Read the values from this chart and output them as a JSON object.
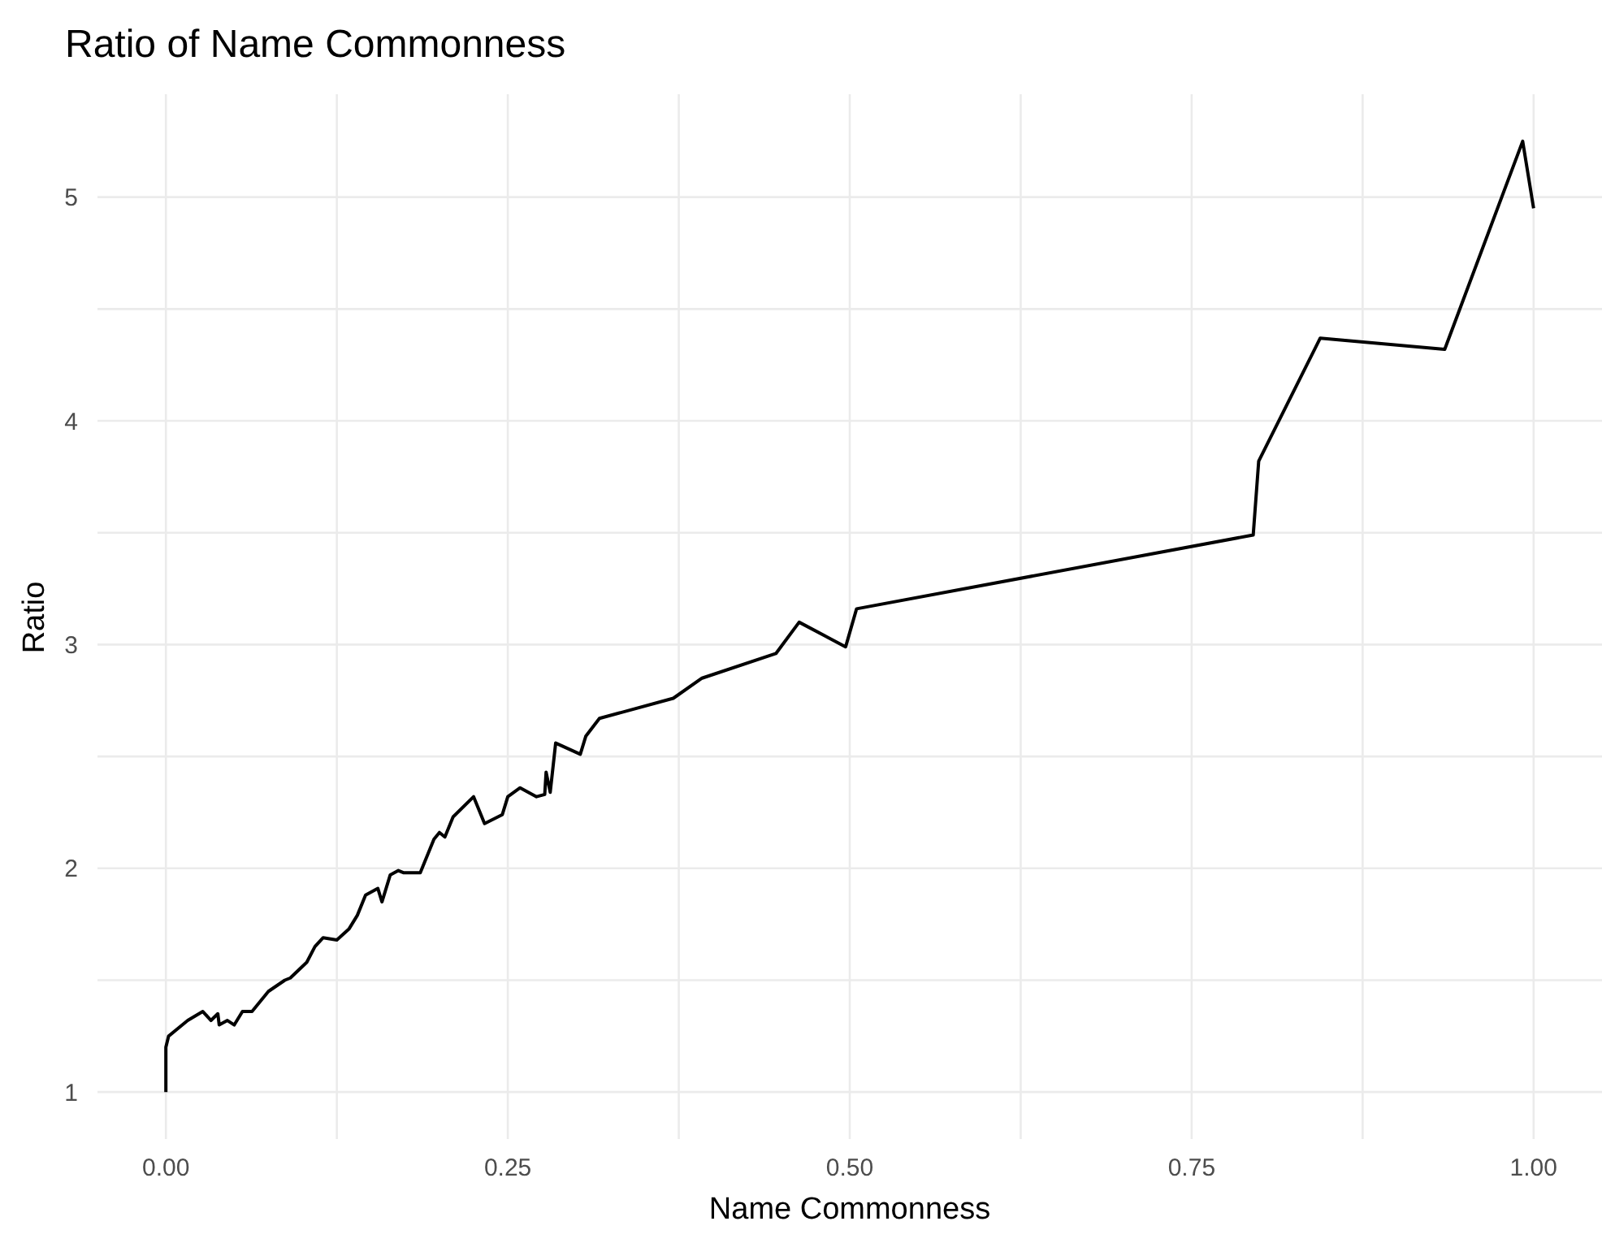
{
  "chart_data": {
    "type": "line",
    "title": "Ratio of Name Commonness",
    "xlabel": "Name Commonness",
    "ylabel": "Ratio",
    "x": [
      0,
      0,
      0.002,
      0.016,
      0.027,
      0.033,
      0.038,
      0.039,
      0.045,
      0.05,
      0.056,
      0.063,
      0.075,
      0.087,
      0.091,
      0.103,
      0.109,
      0.115,
      0.125,
      0.134,
      0.14,
      0.146,
      0.155,
      0.158,
      0.164,
      0.17,
      0.174,
      0.186,
      0.196,
      0.2,
      0.204,
      0.21,
      0.225,
      0.233,
      0.246,
      0.25,
      0.259,
      0.271,
      0.277,
      0.278,
      0.281,
      0.285,
      0.303,
      0.307,
      0.317,
      0.371,
      0.392,
      0.446,
      0.463,
      0.497,
      0.505,
      0.795,
      0.799,
      0.844,
      0.935,
      0.992,
      1
    ],
    "series": [
      {
        "color": "#000000",
        "values": [
          1,
          1.2,
          1.25,
          1.32,
          1.36,
          1.32,
          1.35,
          1.3,
          1.32,
          1.3,
          1.36,
          1.36,
          1.45,
          1.5,
          1.51,
          1.58,
          1.65,
          1.69,
          1.68,
          1.73,
          1.79,
          1.88,
          1.91,
          1.85,
          1.97,
          1.99,
          1.98,
          1.98,
          2.13,
          2.16,
          2.14,
          2.23,
          2.32,
          2.2,
          2.24,
          2.32,
          2.36,
          2.32,
          2.33,
          2.43,
          2.34,
          2.56,
          2.51,
          2.59,
          2.67,
          2.76,
          2.85,
          2.96,
          3.1,
          2.99,
          3.16,
          3.49,
          3.82,
          4.37,
          4.32,
          5.25,
          4.95
        ]
      }
    ],
    "xlim": [
      -0.05,
      1.05
    ],
    "xticks": [
      {
        "value": 0,
        "label": "0.00"
      },
      {
        "value": 0.25,
        "label": "0.25"
      },
      {
        "value": 0.5,
        "label": "0.50"
      },
      {
        "value": 0.75,
        "label": "0.75"
      },
      {
        "value": 1,
        "label": "1.00"
      }
    ],
    "ylim": [
      0.79,
      5.46
    ],
    "yticks": [
      1,
      2,
      3,
      4,
      5
    ],
    "grid": true,
    "legend": false,
    "marker": "none",
    "line_style": "solid"
  }
}
